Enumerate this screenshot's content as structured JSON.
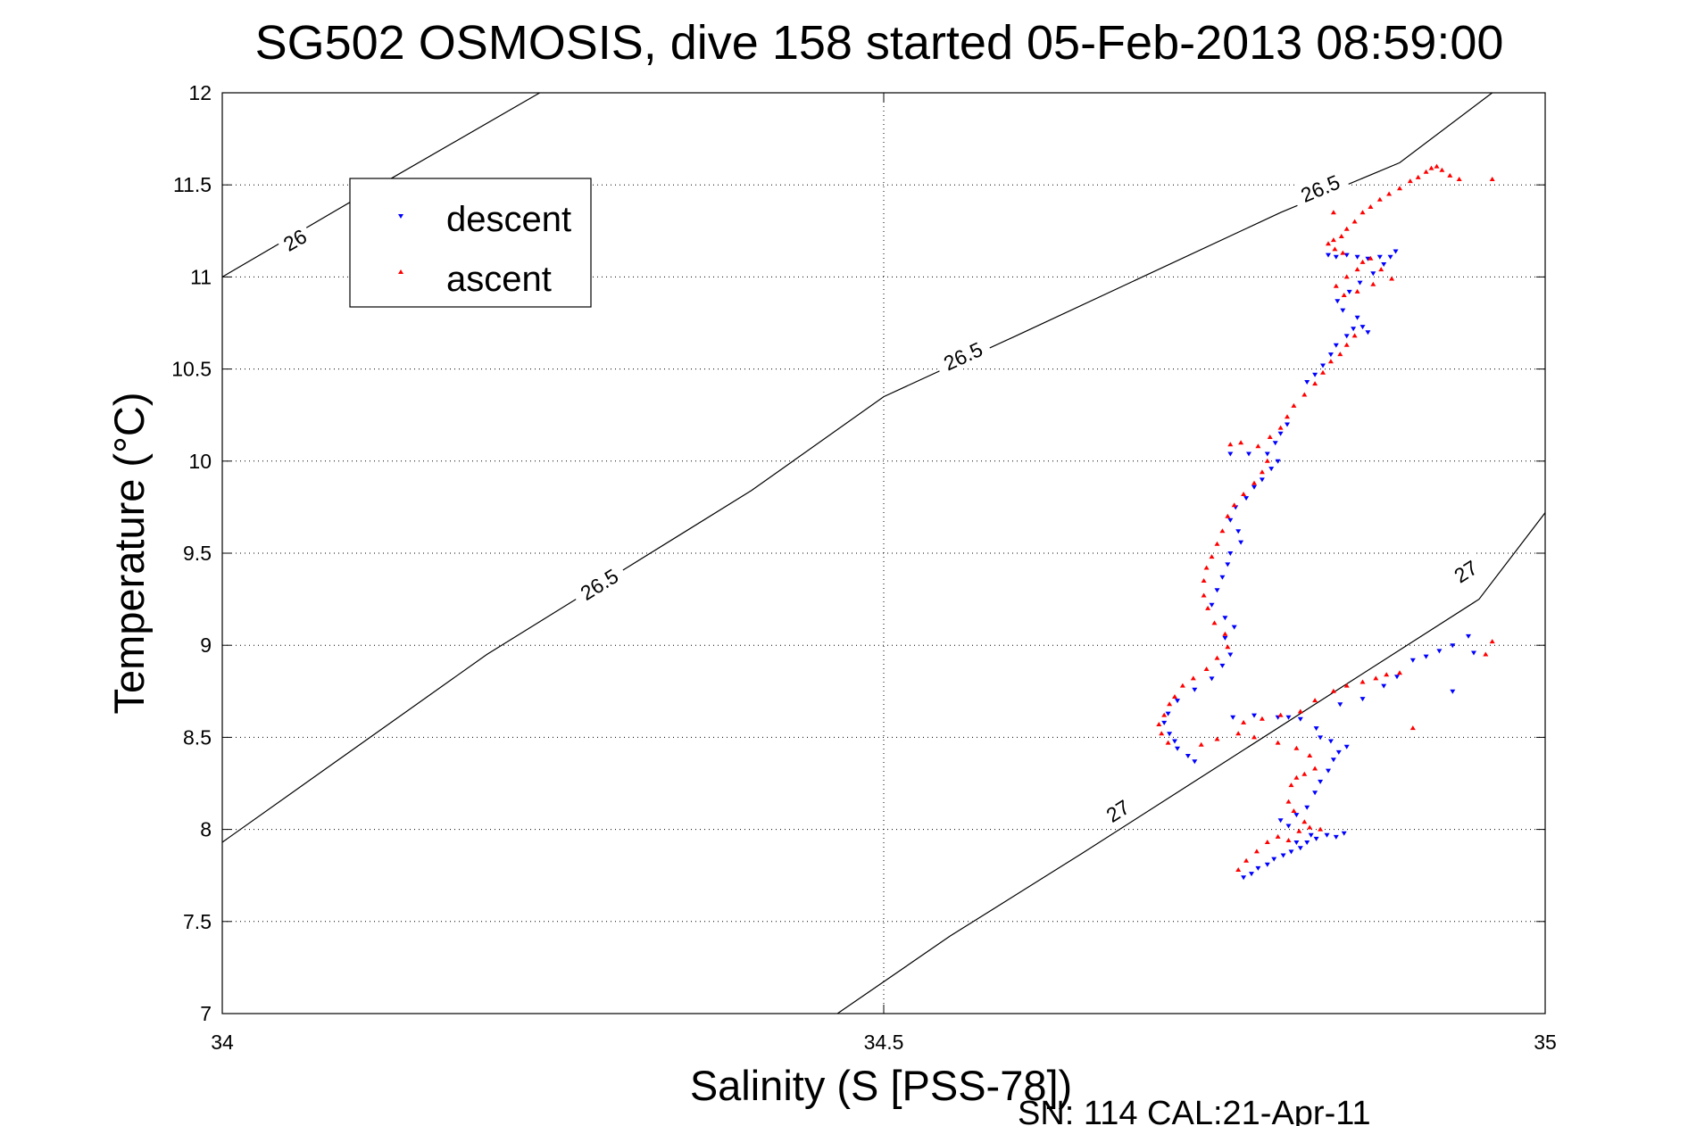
{
  "chart_data": {
    "type": "scatter",
    "title": "SG502 OSMOSIS, dive 158 started 05-Feb-2013 08:59:00",
    "xlabel": "Salinity (S [PSS-78])",
    "ylabel": "Temperature (°C)",
    "footer": "SN: 114  CAL:21-Apr-11",
    "xlim": [
      34,
      35
    ],
    "ylim": [
      7,
      12
    ],
    "x_ticks": [
      "34",
      "34.5",
      "35"
    ],
    "y_ticks": [
      "7",
      "7.5",
      "8",
      "8.5",
      "9",
      "9.5",
      "10",
      "10.5",
      "11",
      "11.5",
      "12"
    ],
    "grid": true,
    "legend": {
      "placement": "upper-left",
      "entries": [
        {
          "label": "descent",
          "color": "#0000ff",
          "marker": "triangle-down"
        },
        {
          "label": "ascent",
          "color": "#ff0000",
          "marker": "triangle-up"
        }
      ]
    },
    "contours": [
      {
        "label": "26",
        "points": [
          [
            34.0,
            11.0
          ],
          [
            34.1,
            11.42
          ],
          [
            34.24,
            12.0
          ]
        ],
        "label_positions": [
          [
            34.055,
            11.2
          ]
        ]
      },
      {
        "label": "26.5",
        "points": [
          [
            34.0,
            7.93
          ],
          [
            34.2,
            8.95
          ],
          [
            34.4,
            9.84
          ],
          [
            34.5,
            10.35
          ],
          [
            34.6,
            10.68
          ],
          [
            34.8,
            11.35
          ],
          [
            34.89,
            11.62
          ],
          [
            34.96,
            12.0
          ]
        ],
        "label_positions": [
          [
            34.285,
            9.33
          ],
          [
            34.56,
            10.57
          ],
          [
            34.83,
            11.48
          ]
        ]
      },
      {
        "label": "27",
        "points": [
          [
            34.465,
            7.0
          ],
          [
            34.55,
            7.42
          ],
          [
            34.65,
            7.87
          ],
          [
            34.75,
            8.33
          ],
          [
            34.85,
            8.79
          ],
          [
            34.95,
            9.25
          ],
          [
            35.0,
            9.72
          ]
        ],
        "label_positions": [
          [
            34.677,
            8.1
          ],
          [
            34.94,
            9.4
          ]
        ]
      }
    ],
    "series": [
      {
        "name": "descent",
        "color": "#0000ff",
        "marker": "triangle-down",
        "points": [
          [
            34.772,
            7.74
          ],
          [
            34.778,
            7.76
          ],
          [
            34.783,
            7.79
          ],
          [
            34.79,
            7.81
          ],
          [
            34.795,
            7.84
          ],
          [
            34.802,
            7.86
          ],
          [
            34.808,
            7.88
          ],
          [
            34.815,
            7.9
          ],
          [
            34.82,
            7.93
          ],
          [
            34.827,
            7.95
          ],
          [
            34.835,
            7.97
          ],
          [
            34.842,
            7.96
          ],
          [
            34.848,
            7.98
          ],
          [
            34.823,
            7.97
          ],
          [
            34.812,
            7.93
          ],
          [
            34.806,
            8.02
          ],
          [
            34.8,
            8.05
          ],
          [
            34.812,
            8.08
          ],
          [
            34.82,
            8.12
          ],
          [
            34.826,
            8.2
          ],
          [
            34.83,
            8.26
          ],
          [
            34.836,
            8.32
          ],
          [
            34.84,
            8.38
          ],
          [
            34.844,
            8.42
          ],
          [
            34.85,
            8.45
          ],
          [
            34.838,
            8.48
          ],
          [
            34.83,
            8.5
          ],
          [
            34.827,
            8.55
          ],
          [
            34.815,
            8.6
          ],
          [
            34.806,
            8.61
          ],
          [
            34.798,
            8.61
          ],
          [
            34.78,
            8.62
          ],
          [
            34.764,
            8.61
          ],
          [
            34.845,
            8.68
          ],
          [
            34.862,
            8.71
          ],
          [
            34.878,
            8.78
          ],
          [
            34.888,
            8.83
          ],
          [
            34.9,
            8.92
          ],
          [
            34.91,
            8.94
          ],
          [
            34.92,
            8.97
          ],
          [
            34.93,
            9.0
          ],
          [
            34.942,
            9.05
          ],
          [
            34.946,
            8.96
          ],
          [
            34.93,
            8.75
          ],
          [
            34.735,
            8.37
          ],
          [
            34.73,
            8.4
          ],
          [
            34.722,
            8.44
          ],
          [
            34.72,
            8.48
          ],
          [
            34.716,
            8.52
          ],
          [
            34.712,
            8.58
          ],
          [
            34.715,
            8.63
          ],
          [
            34.722,
            8.7
          ],
          [
            34.735,
            8.76
          ],
          [
            34.748,
            8.82
          ],
          [
            34.756,
            8.89
          ],
          [
            34.762,
            8.95
          ],
          [
            34.758,
            9.04
          ],
          [
            34.765,
            9.1
          ],
          [
            34.758,
            9.15
          ],
          [
            34.748,
            9.22
          ],
          [
            34.752,
            9.3
          ],
          [
            34.756,
            9.37
          ],
          [
            34.76,
            9.44
          ],
          [
            34.762,
            9.5
          ],
          [
            34.77,
            9.56
          ],
          [
            34.768,
            9.62
          ],
          [
            34.762,
            9.68
          ],
          [
            34.766,
            9.75
          ],
          [
            34.774,
            9.8
          ],
          [
            34.78,
            9.86
          ],
          [
            34.786,
            9.9
          ],
          [
            34.793,
            9.96
          ],
          [
            34.798,
            10.0
          ],
          [
            34.79,
            10.04
          ],
          [
            34.776,
            10.04
          ],
          [
            34.762,
            10.04
          ],
          [
            34.796,
            10.1
          ],
          [
            34.8,
            10.15
          ],
          [
            34.805,
            10.2
          ],
          [
            34.82,
            10.43
          ],
          [
            34.826,
            10.47
          ],
          [
            34.832,
            10.52
          ],
          [
            34.838,
            10.58
          ],
          [
            34.842,
            10.63
          ],
          [
            34.85,
            10.68
          ],
          [
            34.855,
            10.72
          ],
          [
            34.862,
            10.73
          ],
          [
            34.866,
            10.7
          ],
          [
            34.858,
            10.78
          ],
          [
            34.847,
            10.82
          ],
          [
            34.843,
            10.87
          ],
          [
            34.852,
            10.92
          ],
          [
            34.86,
            10.97
          ],
          [
            34.87,
            11.02
          ],
          [
            34.878,
            11.07
          ],
          [
            34.883,
            11.11
          ],
          [
            34.887,
            11.14
          ],
          [
            34.875,
            11.11
          ],
          [
            34.866,
            11.1
          ],
          [
            34.858,
            11.11
          ],
          [
            34.85,
            11.12
          ],
          [
            34.842,
            11.11
          ],
          [
            34.836,
            11.12
          ]
        ]
      },
      {
        "name": "ascent",
        "color": "#ff0000",
        "marker": "triangle-up",
        "points": [
          [
            34.768,
            7.78
          ],
          [
            34.774,
            7.83
          ],
          [
            34.782,
            7.88
          ],
          [
            34.79,
            7.93
          ],
          [
            34.798,
            7.96
          ],
          [
            34.806,
            7.94
          ],
          [
            34.814,
            7.99
          ],
          [
            34.822,
            8.01
          ],
          [
            34.83,
            8.0
          ],
          [
            34.818,
            8.04
          ],
          [
            34.81,
            8.1
          ],
          [
            34.806,
            8.15
          ],
          [
            34.808,
            8.24
          ],
          [
            34.812,
            8.28
          ],
          [
            34.818,
            8.3
          ],
          [
            34.826,
            8.33
          ],
          [
            34.822,
            8.4
          ],
          [
            34.812,
            8.44
          ],
          [
            34.798,
            8.47
          ],
          [
            34.78,
            8.5
          ],
          [
            34.768,
            8.52
          ],
          [
            34.752,
            8.49
          ],
          [
            34.74,
            8.46
          ],
          [
            34.772,
            8.58
          ],
          [
            34.786,
            8.6
          ],
          [
            34.8,
            8.62
          ],
          [
            34.815,
            8.64
          ],
          [
            34.826,
            8.7
          ],
          [
            34.84,
            8.75
          ],
          [
            34.85,
            8.78
          ],
          [
            34.862,
            8.8
          ],
          [
            34.872,
            8.82
          ],
          [
            34.88,
            8.84
          ],
          [
            34.89,
            8.85
          ],
          [
            34.9,
            8.55
          ],
          [
            34.955,
            8.95
          ],
          [
            34.96,
            9.02
          ],
          [
            34.715,
            8.47
          ],
          [
            34.71,
            8.52
          ],
          [
            34.708,
            8.57
          ],
          [
            34.712,
            8.62
          ],
          [
            34.716,
            8.68
          ],
          [
            34.72,
            8.72
          ],
          [
            34.726,
            8.78
          ],
          [
            34.734,
            8.82
          ],
          [
            34.744,
            8.87
          ],
          [
            34.752,
            8.93
          ],
          [
            34.76,
            8.99
          ],
          [
            34.758,
            9.06
          ],
          [
            34.75,
            9.12
          ],
          [
            34.745,
            9.2
          ],
          [
            34.742,
            9.27
          ],
          [
            34.742,
            9.35
          ],
          [
            34.744,
            9.42
          ],
          [
            34.748,
            9.48
          ],
          [
            34.752,
            9.55
          ],
          [
            34.756,
            9.62
          ],
          [
            34.76,
            9.7
          ],
          [
            34.765,
            9.76
          ],
          [
            34.772,
            9.82
          ],
          [
            34.78,
            9.88
          ],
          [
            34.786,
            9.94
          ],
          [
            34.79,
            10.0
          ],
          [
            34.783,
            10.08
          ],
          [
            34.77,
            10.1
          ],
          [
            34.762,
            10.09
          ],
          [
            34.792,
            10.13
          ],
          [
            34.8,
            10.18
          ],
          [
            34.805,
            10.24
          ],
          [
            34.81,
            10.3
          ],
          [
            34.818,
            10.36
          ],
          [
            34.826,
            10.42
          ],
          [
            34.832,
            10.48
          ],
          [
            34.838,
            10.54
          ],
          [
            34.845,
            10.58
          ],
          [
            34.85,
            10.63
          ],
          [
            34.856,
            10.68
          ],
          [
            34.848,
            10.9
          ],
          [
            34.842,
            10.95
          ],
          [
            34.85,
            11.0
          ],
          [
            34.858,
            11.04
          ],
          [
            34.862,
            11.08
          ],
          [
            34.868,
            11.1
          ],
          [
            34.876,
            11.04
          ],
          [
            34.884,
            10.99
          ],
          [
            34.87,
            10.96
          ],
          [
            34.858,
            10.92
          ],
          [
            34.847,
            11.13
          ],
          [
            34.841,
            11.15
          ],
          [
            34.836,
            11.18
          ],
          [
            34.84,
            11.2
          ],
          [
            34.846,
            11.22
          ],
          [
            34.85,
            11.26
          ],
          [
            34.856,
            11.3
          ],
          [
            34.862,
            11.35
          ],
          [
            34.868,
            11.38
          ],
          [
            34.875,
            11.42
          ],
          [
            34.882,
            11.45
          ],
          [
            34.89,
            11.48
          ],
          [
            34.898,
            11.52
          ],
          [
            34.904,
            11.54
          ],
          [
            34.91,
            11.57
          ],
          [
            34.914,
            11.59
          ],
          [
            34.918,
            11.6
          ],
          [
            34.922,
            11.58
          ],
          [
            34.928,
            11.55
          ],
          [
            34.935,
            11.53
          ],
          [
            34.96,
            11.53
          ],
          [
            34.84,
            11.35
          ]
        ]
      }
    ]
  }
}
